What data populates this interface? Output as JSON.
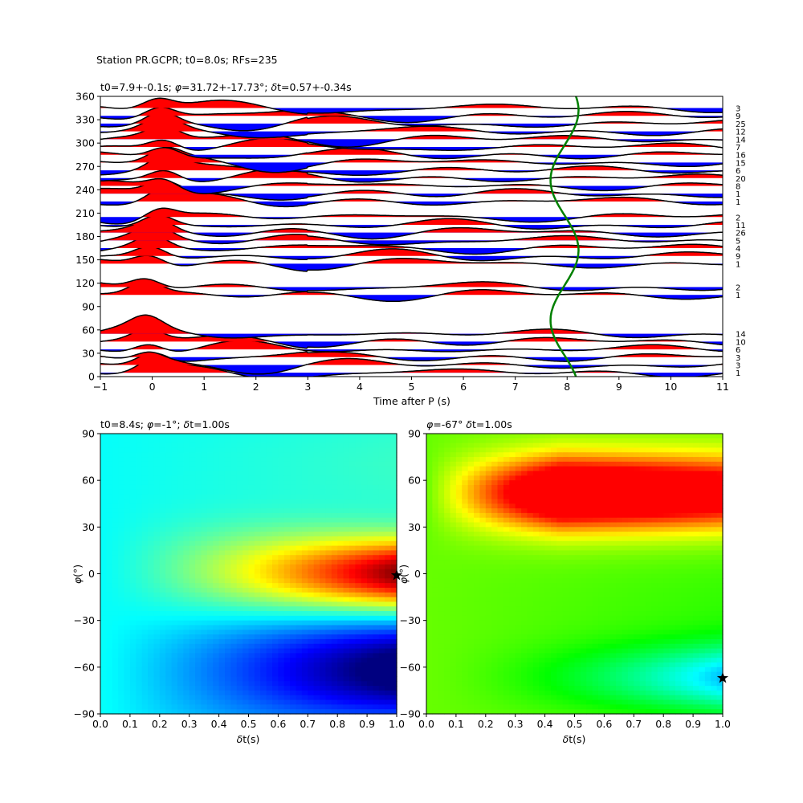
{
  "figure": {
    "suptitle": "Station PR.GCPR; t0=8.0s; RFs=235"
  },
  "chart_data": [
    {
      "id": "receiver-functions",
      "type": "line",
      "title": "t0=7.9+-0.1s; φ=31.72+-17.73°; δt=0.57+-0.34s",
      "title_parts": [
        "t0=7.9+-0.1s; ",
        "φ",
        "=31.72+-17.73°; ",
        "δ",
        "t=0.57+-0.34s"
      ],
      "xlabel": "Time after P (s)",
      "ylabel": "",
      "xlim": [
        -1,
        11
      ],
      "ylim": [
        0,
        360
      ],
      "xticks": [
        "−1",
        "0",
        "1",
        "2",
        "3",
        "4",
        "5",
        "6",
        "7",
        "8",
        "9",
        "10",
        "11"
      ],
      "yticks": [
        "0",
        "30",
        "60",
        "90",
        "120",
        "150",
        "180",
        "210",
        "240",
        "270",
        "300",
        "330",
        "360"
      ],
      "grid": false,
      "fill_positive": "#ff0000",
      "fill_negative": "#0000ff",
      "trace_color": "#000000",
      "backazimuths": [
        5,
        15,
        25,
        35,
        45,
        55,
        105,
        115,
        145,
        155,
        165,
        175,
        185,
        195,
        205,
        225,
        235,
        245,
        255,
        265,
        275,
        285,
        295,
        305,
        315,
        325,
        335,
        345
      ],
      "counts": [
        "1",
        "3",
        "3",
        "6",
        "10",
        "14",
        "1",
        "2",
        "1",
        "9",
        "4",
        "5",
        "26",
        "11",
        "2",
        "1",
        "1",
        "8",
        "20",
        "6",
        "15",
        "16",
        "7",
        "14",
        "12",
        "25",
        "9",
        "3"
      ],
      "green_curve": {
        "color": "#008000",
        "description_free": true,
        "x_mean": 7.95,
        "x_amplitude": 0.27,
        "ybaz": [
          0,
          30,
          60,
          90,
          120,
          150,
          180,
          210,
          240,
          270,
          300,
          330,
          360
        ],
        "x": [
          7.85,
          7.72,
          7.88,
          8.17,
          8.26,
          8.05,
          7.8,
          7.72,
          7.92,
          8.18,
          8.25,
          8.05,
          7.85
        ]
      }
    },
    {
      "id": "energy-map-left",
      "type": "heatmap",
      "title": "t0=8.4s; φ=-1°; δt=1.00s",
      "title_parts": [
        "t0=8.4s; ",
        "φ",
        "=-1°; ",
        "δ",
        "t=1.00s"
      ],
      "xlabel": "δt(s)",
      "ylabel": "φ(°)",
      "xlim": [
        0.0,
        1.0
      ],
      "ylim": [
        -90,
        90
      ],
      "xticks": [
        "0.0",
        "0.1",
        "0.2",
        "0.3",
        "0.4",
        "0.5",
        "0.6",
        "0.7",
        "0.8",
        "0.9",
        "1.0"
      ],
      "yticks": [
        "−90",
        "−60",
        "−30",
        "0",
        "30",
        "60",
        "90"
      ],
      "colormap": "jet",
      "best": {
        "dt": 1.0,
        "phi": -1
      }
    },
    {
      "id": "energy-map-right",
      "type": "heatmap",
      "title": "φ=-67° δt=1.00s",
      "title_parts": [
        "φ",
        "=-67° ",
        "δ",
        "t=1.00s"
      ],
      "xlabel": "δt(s)",
      "ylabel": "φ(°)",
      "xlim": [
        0.0,
        1.0
      ],
      "ylim": [
        -90,
        90
      ],
      "xticks": [
        "0.0",
        "0.1",
        "0.2",
        "0.3",
        "0.4",
        "0.5",
        "0.6",
        "0.7",
        "0.8",
        "0.9",
        "1.0"
      ],
      "yticks": [
        "−90",
        "−60",
        "−30",
        "0",
        "30",
        "60",
        "90"
      ],
      "colormap": "gist_rainbow",
      "best": {
        "dt": 1.0,
        "phi": -67
      }
    }
  ]
}
